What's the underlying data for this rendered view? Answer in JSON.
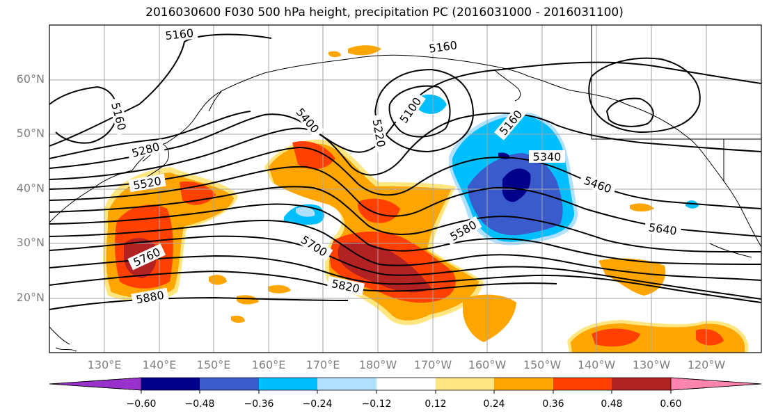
{
  "title": "2016030600 F030 500 hPa height, precipitation PC (2016031000 - 2016031100)",
  "lat_labels": [
    "60°N",
    "50°N",
    "40°N",
    "30°N",
    "20°N"
  ],
  "lon_labels": [
    "130°E",
    "140°E",
    "150°E",
    "160°E",
    "170°E",
    "180°W",
    "170°W",
    "160°W",
    "150°W",
    "140°W",
    "130°W",
    "120°W"
  ],
  "contour_labels": [
    "5160",
    "5160",
    "5160",
    "5160",
    "5100",
    "5220",
    "5280",
    "5400",
    "5520",
    "5340",
    "5460",
    "5640",
    "5580",
    "5700",
    "5760",
    "5820",
    "5880"
  ],
  "colorbar": {
    "ticks": [
      "−0.60",
      "−0.48",
      "−0.36",
      "−0.24",
      "−0.12",
      "0.12",
      "0.24",
      "0.36",
      "0.48",
      "0.60"
    ],
    "colors": [
      "#9932cc",
      "#00008b",
      "#3a5bcc",
      "#00bfff",
      "#b0e0ff",
      "#ffffff",
      "#ffe680",
      "#ffa500",
      "#ff4000",
      "#b22222",
      "#ff85b0"
    ]
  }
}
